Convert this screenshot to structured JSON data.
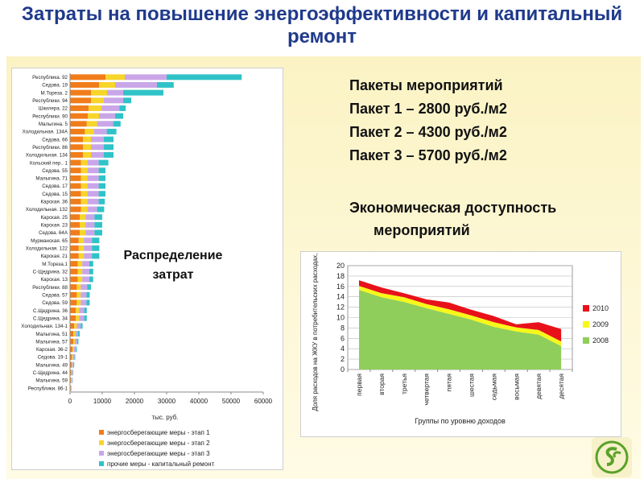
{
  "title": "Затраты на повышение энергоэффективности и капитальный ремонт",
  "packages": [
    "Пакеты мероприятий",
    "Пакет 1 – 2800 руб./м2",
    "Пакет 2 – 4300 руб./м2",
    "Пакет 3 – 5700 руб./м2"
  ],
  "econ_lines": [
    "Экономическая доступность",
    "мероприятий"
  ],
  "dist_label": "Распределение затрат",
  "colors": {
    "title": "#1f3a8c",
    "stage1": "#f07d1a",
    "stage2": "#f7d52a",
    "stage3": "#c9a6e8",
    "repair": "#2fc3c8",
    "y2010": "#e8111a",
    "y2009": "#f7f71a",
    "y2008": "#8fce5a"
  },
  "chart_data": [
    {
      "type": "bar",
      "orientation": "horizontal",
      "stacked": true,
      "categories": [
        "Республика. 92",
        "Седова. 19",
        "М.Тореза. 2",
        "Республики. 94",
        "Шкилера. 22",
        "Республики. 90",
        "Малыгина. 5",
        "Холодильная. 134А",
        "Седова. 66",
        "Республики. 86",
        "Холодильная. 134",
        "Кольский пер.. 1",
        "Седова. 55",
        "Малыгина. 71",
        "Седова. 17",
        "Седова. 15",
        "Карская. 36",
        "Холодильная. 132",
        "Карская. 25",
        "Карская. 23",
        "Седова. 64А",
        "Мурманская. 65",
        "Холодильная. 122",
        "Карская. 21",
        "М.Тореза.1",
        "С-Щедрина. 32",
        "Карская. 13",
        "Республики. 88",
        "Седова. 57",
        "Седова. 59",
        "С.Щедрина. 36",
        "С.Щедрина. 34",
        "Холодильная. 134-1",
        "Малыгина. 51",
        "Малыгина. 57",
        "Карская. 36-2",
        "Седова. 19-1",
        "Малыгина. 49",
        "С-Щедрина. 44",
        "Малыгина. 59",
        "Республики. 86-1"
      ],
      "series": [
        {
          "name": "энергосберегающие меры - этап 1",
          "values": [
            11000,
            9000,
            6500,
            6500,
            5800,
            5500,
            5200,
            4600,
            4000,
            4000,
            4000,
            3400,
            3400,
            3400,
            3400,
            3400,
            3400,
            3400,
            3000,
            3000,
            3000,
            2700,
            2700,
            2700,
            2400,
            2400,
            2400,
            2100,
            2100,
            2100,
            1800,
            1800,
            1300,
            1000,
            1000,
            800,
            600,
            500,
            400,
            300,
            200
          ]
        },
        {
          "name": "энергосберегающие меры - этап 2",
          "values": [
            6000,
            5000,
            5000,
            4000,
            4000,
            3500,
            3200,
            2800,
            2500,
            2500,
            2500,
            2000,
            2000,
            2000,
            2000,
            2000,
            2000,
            2000,
            1800,
            1800,
            1800,
            1600,
            1600,
            1600,
            1400,
            1400,
            1400,
            1200,
            1200,
            1200,
            1000,
            1000,
            800,
            600,
            500,
            400,
            300,
            200,
            200,
            150,
            100
          ]
        },
        {
          "name": "энергосберегающие меры - этап 3",
          "values": [
            13000,
            13000,
            5000,
            6000,
            5500,
            5000,
            5000,
            4000,
            4000,
            4000,
            4000,
            3500,
            3500,
            3500,
            3500,
            3500,
            3500,
            3000,
            2800,
            2800,
            2800,
            2500,
            2500,
            2500,
            2200,
            2200,
            2200,
            2000,
            1800,
            1800,
            1600,
            1600,
            1200,
            900,
            700,
            600,
            500,
            400,
            300,
            250,
            200
          ]
        },
        {
          "name": "прочие меры - капитальный ремонт",
          "values": [
            23300,
            5200,
            12500,
            2500,
            2000,
            2500,
            2300,
            3000,
            3000,
            3000,
            3000,
            3000,
            2100,
            2100,
            2100,
            2100,
            1900,
            2200,
            2400,
            2400,
            2400,
            2300,
            2300,
            2300,
            1200,
            1200,
            1200,
            1200,
            1000,
            1000,
            800,
            800,
            600,
            500,
            400,
            300,
            200,
            200,
            100,
            100,
            0
          ]
        }
      ],
      "x_ticks": [
        "0",
        "10000",
        "20000",
        "30000",
        "40000",
        "50000",
        "60000"
      ],
      "xlim": [
        0,
        60000
      ],
      "xlabel": "тыс. руб.",
      "grid": false,
      "legend_position": "bottom"
    },
    {
      "type": "area",
      "stacked": true,
      "categories": [
        "первая",
        "вторая",
        "третья",
        "четвертая",
        "пятая",
        "шестая",
        "седьмая",
        "восьмая",
        "девятая",
        "десятая"
      ],
      "series": [
        {
          "name": "2008",
          "values": [
            15.3,
            13.9,
            13.0,
            11.8,
            10.7,
            9.6,
            8.2,
            7.3,
            6.7,
            4.5
          ]
        },
        {
          "name": "2009",
          "values": [
            0.8,
            0.8,
            0.9,
            0.8,
            0.9,
            0.8,
            0.9,
            0.8,
            0.9,
            0.9
          ]
        },
        {
          "name": "2010",
          "values": [
            1.1,
            1.1,
            0.8,
            0.9,
            1.3,
            1.1,
            1.2,
            0.6,
            1.5,
            2.4
          ]
        }
      ],
      "ylim": [
        0,
        20
      ],
      "y_ticks": [
        "0",
        "2",
        "4",
        "6",
        "8",
        "10",
        "12",
        "14",
        "16",
        "18",
        "20"
      ],
      "ylabel": "Доля расходов на ЖКУ в потребительских расходах, %",
      "xlabel": "Группы по уровню доходов",
      "grid": true,
      "legend_position": "right"
    }
  ]
}
